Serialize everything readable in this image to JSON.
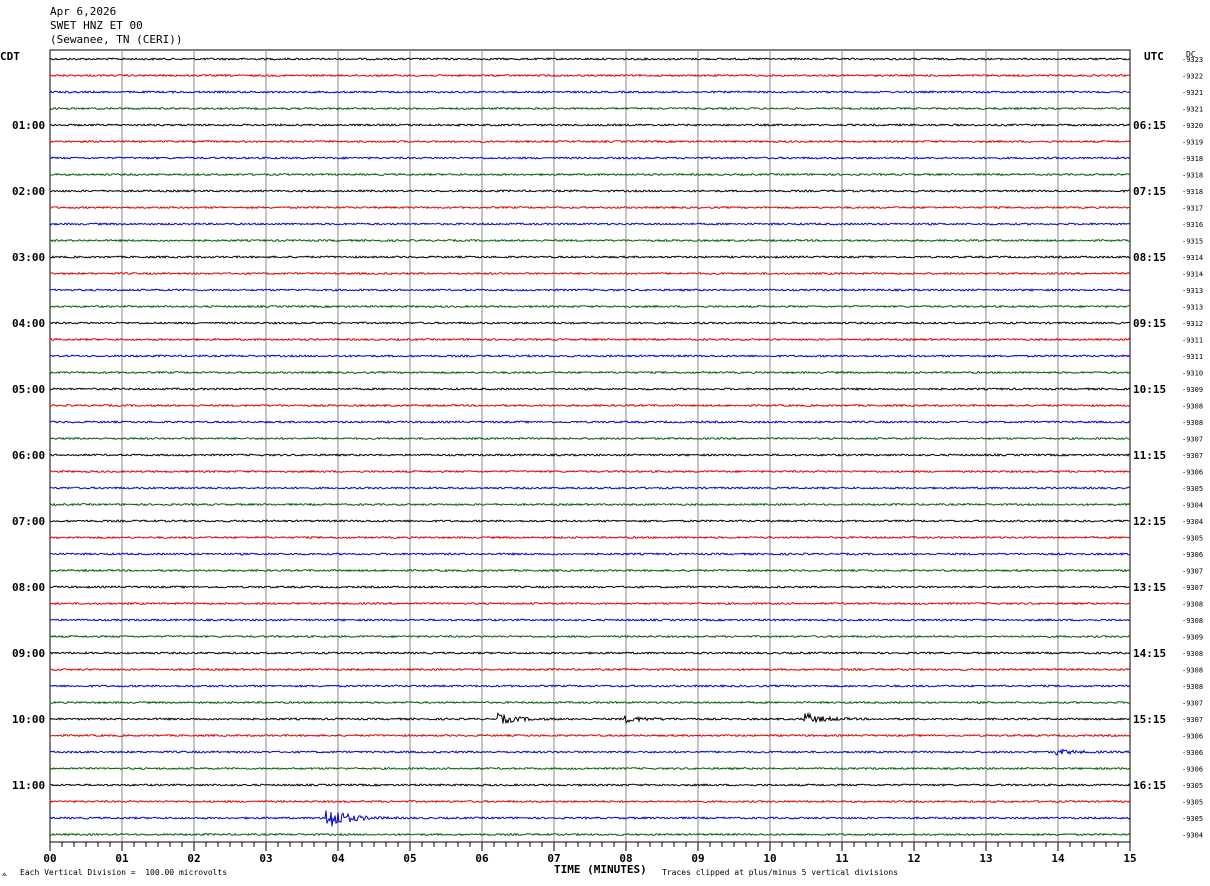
{
  "header": {
    "date": "Apr 6,2026",
    "station": "SWET HNZ ET 00",
    "location": "(Sewanee, TN (CERI))"
  },
  "left_axis_label": "CDT",
  "right_axis_label": "UTC",
  "dc_label": "DC",
  "footer": {
    "scale_note": "Each Vertical Division =  100.00 microvolts",
    "clip_note": "Traces clipped at plus/minus 5 vertical divisions",
    "corner_mark": "⟑"
  },
  "colors": {
    "trace_cycle": [
      "#000000",
      "#e00000",
      "#0000d0",
      "#006000"
    ],
    "grid": "#888888"
  },
  "chart_data": {
    "type": "line",
    "title": "",
    "xlabel": "TIME (MINUTES)",
    "xlim": [
      0,
      15
    ],
    "x_ticks": [
      "00",
      "01",
      "02",
      "03",
      "04",
      "05",
      "06",
      "07",
      "08",
      "09",
      "10",
      "11",
      "12",
      "13",
      "14",
      "15"
    ],
    "traces_per_hour": 4,
    "cdt_hour_labels": [
      "01:00",
      "02:00",
      "03:00",
      "04:00",
      "05:00",
      "06:00",
      "07:00",
      "08:00",
      "09:00",
      "10:00",
      "11:00"
    ],
    "utc_hour_labels": [
      "06:15",
      "07:15",
      "08:15",
      "09:15",
      "10:15",
      "11:15",
      "12:15",
      "13:15",
      "14:15",
      "15:15",
      "16:15"
    ],
    "dc_offsets": [
      "-9323",
      "-9322",
      "-9321",
      "-9321",
      "-9320",
      "-9319",
      "-9318",
      "-9318",
      "-9318",
      "-9317",
      "-9316",
      "-9315",
      "-9314",
      "-9314",
      "-9313",
      "-9313",
      "-9312",
      "-9311",
      "-9311",
      "-9310",
      "-9309",
      "-9308",
      "-9308",
      "-9307",
      "-9307",
      "-9306",
      "-9305",
      "-9304",
      "-9304",
      "-9305",
      "-9306",
      "-9307",
      "-9307",
      "-9308",
      "-9308",
      "-9309",
      "-9308",
      "-9308",
      "-9308",
      "-9307",
      "-9307",
      "-9306",
      "-9306",
      "-9306",
      "-9305",
      "-9305",
      "-9305",
      "-9304"
    ],
    "events": [
      {
        "trace": 40,
        "minute": 6.25,
        "amplitude": 0.8
      },
      {
        "trace": 40,
        "minute": 8.0,
        "amplitude": 0.5
      },
      {
        "trace": 40,
        "minute": 10.5,
        "amplitude": 0.9
      },
      {
        "trace": 42,
        "minute": 14.0,
        "amplitude": 0.4
      },
      {
        "trace": 46,
        "minute": 3.85,
        "amplitude": 2.2
      }
    ]
  }
}
